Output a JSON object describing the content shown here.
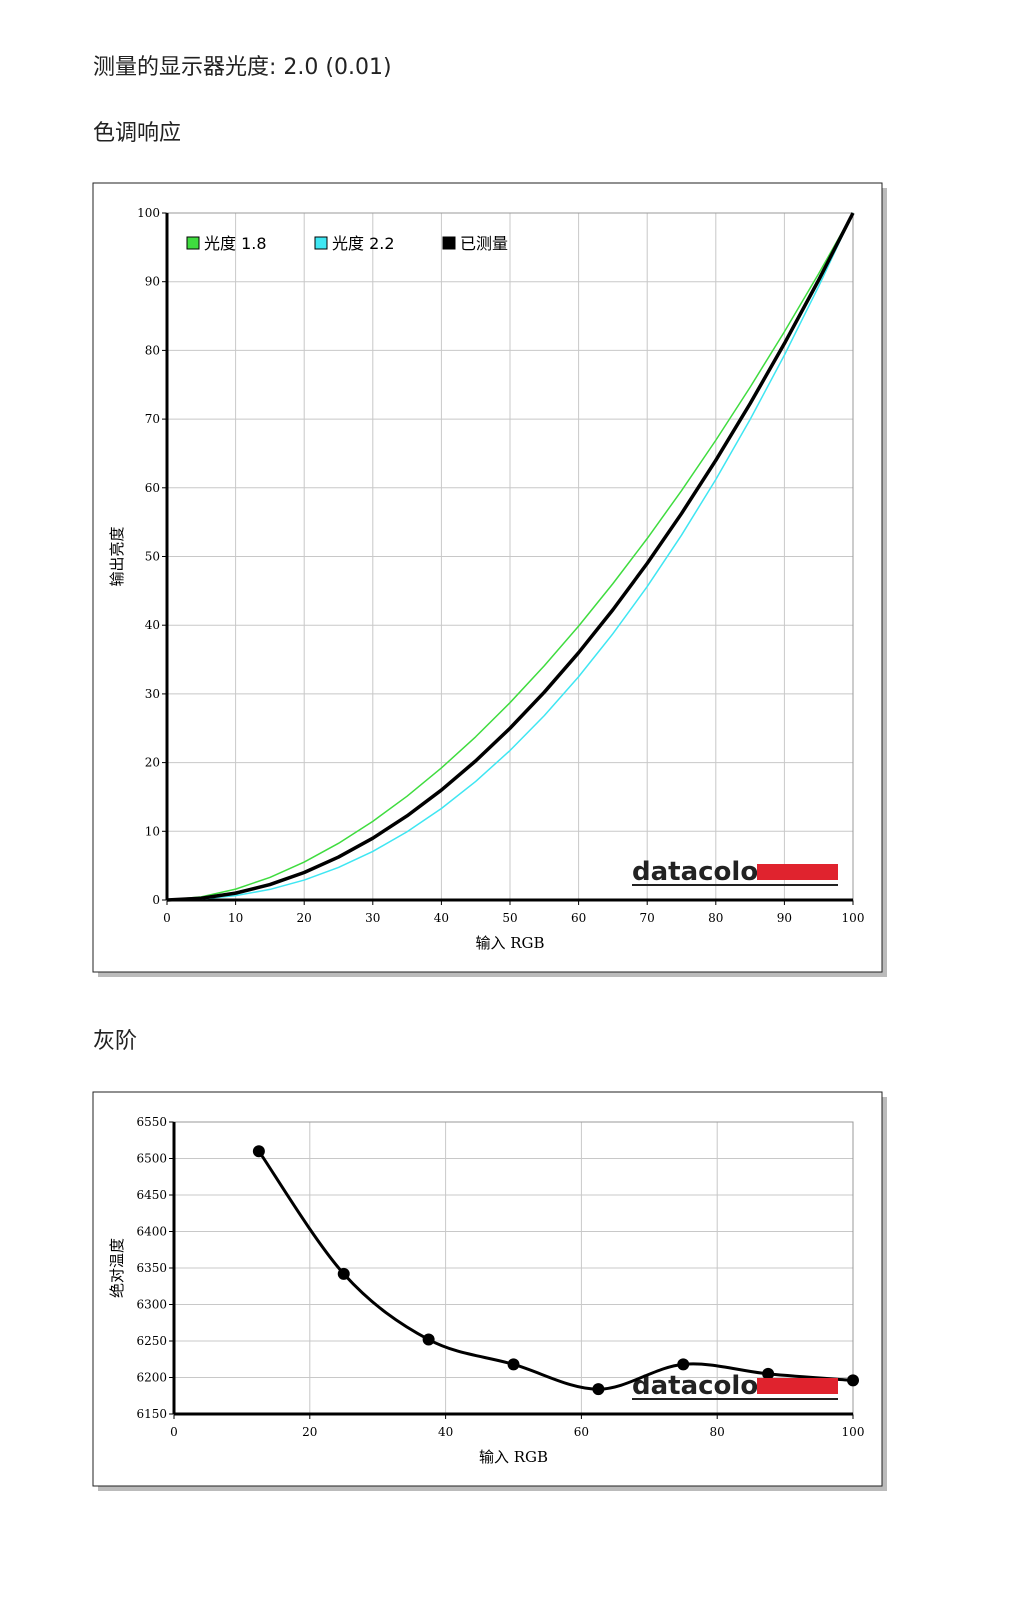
{
  "measured_gamma": "测量的显示器光度: 2.0 (0.01)",
  "chart_data": [
    {
      "type": "line",
      "title": "色调响应",
      "xlabel": "输入 RGB",
      "ylabel": "输出亮度",
      "watermark": "datacolor",
      "x": [
        0,
        5,
        10,
        15,
        20,
        25,
        30,
        35,
        40,
        45,
        50,
        55,
        60,
        65,
        70,
        75,
        80,
        85,
        90,
        95,
        100
      ],
      "series": [
        {
          "name": "光度 1.8",
          "color": "#3fdc3f",
          "width": 1.5,
          "values": [
            0,
            0.46,
            1.58,
            3.29,
            5.52,
            8.25,
            11.45,
            15.11,
            19.22,
            23.76,
            28.72,
            34.09,
            39.87,
            46.05,
            52.62,
            59.58,
            66.92,
            74.64,
            82.72,
            91.18,
            100
          ]
        },
        {
          "name": "光度 2.2",
          "color": "#3fe6f2",
          "width": 1.5,
          "values": [
            0,
            0.14,
            0.63,
            1.54,
            2.9,
            4.74,
            7.07,
            9.93,
            13.32,
            17.26,
            21.76,
            26.84,
            32.5,
            38.76,
            45.62,
            53.1,
            61.21,
            69.94,
            79.31,
            89.33,
            100
          ]
        },
        {
          "name": "已测量",
          "color": "#000000",
          "width": 3.5,
          "values": [
            0,
            0.25,
            1,
            2.25,
            4,
            6.25,
            9,
            12.25,
            16,
            20.25,
            25,
            30.25,
            36,
            42.25,
            49,
            56.25,
            64,
            72.25,
            81,
            90.25,
            100
          ]
        }
      ],
      "xlim": [
        0,
        100
      ],
      "xticks": [
        0,
        10,
        20,
        30,
        40,
        50,
        60,
        70,
        80,
        90,
        100
      ],
      "ylim": [
        0,
        100
      ],
      "yticks": [
        0,
        10,
        20,
        30,
        40,
        50,
        60,
        70,
        80,
        90,
        100
      ],
      "grid": true,
      "legend": "top-left",
      "smooth": false,
      "markers": false
    },
    {
      "type": "line",
      "title": "灰阶",
      "xlabel": "输入 RGB",
      "ylabel": "绝对温度",
      "watermark": "datacolor",
      "x": [
        12.5,
        25,
        37.5,
        50,
        62.5,
        75,
        87.5,
        100
      ],
      "series": [
        {
          "color": "#000000",
          "width": 3,
          "values": [
            6510,
            6342,
            6252,
            6218,
            6184,
            6218,
            6205,
            6196
          ]
        }
      ],
      "xlim": [
        0,
        100
      ],
      "xticks": [
        0,
        20,
        40,
        60,
        80,
        100
      ],
      "ylim": [
        6150,
        6550
      ],
      "yticks": [
        6150,
        6200,
        6250,
        6300,
        6350,
        6400,
        6450,
        6500,
        6550
      ],
      "grid": true,
      "smooth": true,
      "markers": true
    }
  ]
}
